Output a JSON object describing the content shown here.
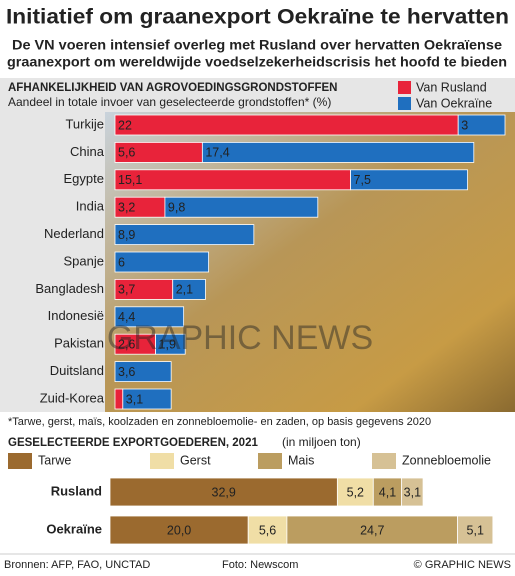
{
  "header": {
    "title": "Initiatief om graanexport Oekraïne te hervatten",
    "subtitle": [
      "De VN voeren intensief overleg met Rusland over hervatten Oekraïense",
      "graanexport om wereldwijde voedselzekerheidscrisis het hoofd te bieden"
    ]
  },
  "chart_data": [
    {
      "type": "bar",
      "orientation": "horizontal",
      "stacked": true,
      "title": "AFHANKELIJKHEID VAN AGROVOEDINGSGRONDSTOFFEN",
      "subtitle": "Aandeel in totale invoer van geselecteerde grondstoffen* (%)",
      "note": "*Tarwe, gerst, maïs, koolzaden en zonnebloemolie- en zaden, op basis gegevens 2020",
      "categories": [
        "Turkije",
        "China",
        "Egypte",
        "India",
        "Nederland",
        "Spanje",
        "Bangladesh",
        "Indonesië",
        "Pakistan",
        "Duitsland",
        "Zuid-Korea"
      ],
      "series": [
        {
          "name": "Van Rusland",
          "color": "#e8233a",
          "values": [
            22,
            5.6,
            15.1,
            3.2,
            null,
            null,
            3.7,
            null,
            2.6,
            null,
            0.5
          ],
          "value_labels": [
            "22",
            "5,6",
            "15,1",
            "3,2",
            null,
            null,
            "3,7",
            null,
            "2,6",
            null,
            null
          ]
        },
        {
          "name": "Van Oekraïne",
          "color": "#1f6fbf",
          "values": [
            3,
            17.4,
            7.5,
            9.8,
            8.9,
            6,
            2.1,
            4.4,
            1.9,
            3.6,
            3.1
          ],
          "value_labels": [
            "3",
            "17,4",
            "7,5",
            "9,8",
            "8,9",
            "6",
            "2,1",
            "4,4",
            "1,9",
            "3,6",
            "3,1"
          ]
        }
      ],
      "xlim": [
        0,
        25
      ],
      "legend": "top-right"
    },
    {
      "type": "bar",
      "orientation": "horizontal",
      "stacked": true,
      "title": "GESELECTEERDE EXPORTGOEDEREN, 2021",
      "subtitle": "(in miljoen ton)",
      "categories": [
        "Rusland",
        "Oekraïne"
      ],
      "series": [
        {
          "name": "Tarwe",
          "color": "#9b6a2f",
          "values": [
            32.9,
            20.0
          ],
          "value_labels": [
            "32,9",
            "20,0"
          ]
        },
        {
          "name": "Gerst",
          "color": "#f0dea6",
          "values": [
            5.2,
            5.6
          ],
          "value_labels": [
            "5,2",
            "5,6"
          ]
        },
        {
          "name": "Mais",
          "color": "#bb9d60",
          "values": [
            4.1,
            24.7
          ],
          "value_labels": [
            "4,1",
            "24,7"
          ]
        },
        {
          "name": "Zonnebloemolie",
          "color": "#d6c195",
          "values": [
            3.1,
            5.1
          ],
          "value_labels": [
            "3,1",
            "5,1"
          ]
        }
      ],
      "xlim": [
        0,
        56
      ],
      "legend": "top"
    }
  ],
  "footer": {
    "sources": "Bronnen: AFP, FAO, UNCTAD",
    "photo": "Foto: Newscom",
    "copyright": "© GRAPHIC NEWS",
    "watermark": "GRAPHIC NEWS"
  }
}
